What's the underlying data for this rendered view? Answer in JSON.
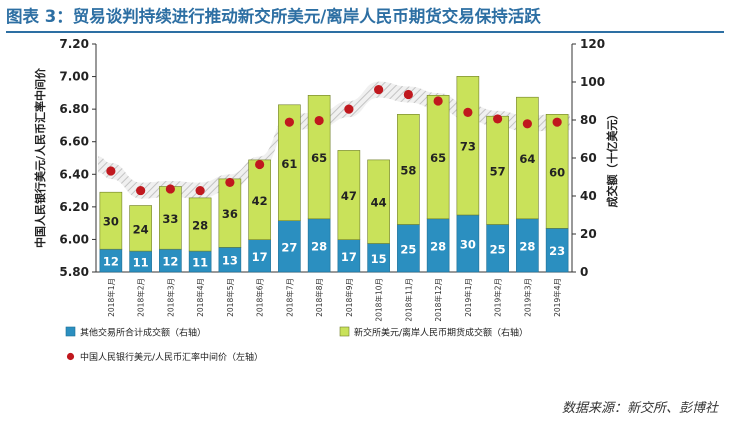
{
  "title": "图表 3：贸易谈判持续进行推动新交所美元/离岸人民币期货交易保持活跃",
  "source": "数据来源：新交所、彭博社",
  "colors": {
    "title": "#2d6fa3",
    "bar_other": "#2b8fc0",
    "bar_sgx": "#c9e25a",
    "dot": "#c0181e",
    "band": "#bdbdbd"
  },
  "chart_data": {
    "type": "bar",
    "categories": [
      "2018年1月",
      "2018年2月",
      "2018年3月",
      "2018年4月",
      "2018年5月",
      "2018年6月",
      "2018年7月",
      "2018年8月",
      "2018年9月",
      "2018年10月",
      "2018年11月",
      "2018年12月",
      "2019年1月",
      "2019年2月",
      "2019年3月",
      "2019年4月"
    ],
    "series": [
      {
        "name": "其他交易所合计成交额（右轴）",
        "type": "bar",
        "axis": "right",
        "values": [
          12,
          11,
          12,
          11,
          13,
          17,
          27,
          28,
          17,
          15,
          25,
          28,
          30,
          25,
          28,
          23
        ]
      },
      {
        "name": "新交所美元/离岸人民币期货成交额（右轴）",
        "type": "bar",
        "axis": "right",
        "values": [
          30,
          24,
          33,
          28,
          36,
          42,
          61,
          65,
          47,
          44,
          58,
          65,
          73,
          57,
          64,
          60
        ]
      },
      {
        "name": "中国人民银行美元/人民币汇率中间价（左轴）",
        "type": "scatter",
        "axis": "left",
        "values": [
          6.42,
          6.3,
          6.31,
          6.3,
          6.35,
          6.46,
          6.72,
          6.73,
          6.8,
          6.92,
          6.89,
          6.85,
          6.78,
          6.74,
          6.71,
          6.72
        ]
      }
    ],
    "ylabel_left": "中国人民银行美元/人民币汇率中间价",
    "ylabel_right": "成交额（十亿美元）",
    "yticks_left": [
      "5.80",
      "6.00",
      "6.20",
      "6.40",
      "6.60",
      "6.80",
      "7.00",
      "7.20"
    ],
    "yticks_right": [
      "0",
      "20",
      "40",
      "60",
      "80",
      "100",
      "120"
    ],
    "ylim_left": [
      5.8,
      7.2
    ],
    "ylim_right": [
      0,
      120
    ],
    "legend": {
      "other": "其他交易所合计成交额（右轴）",
      "sgx": "新交所美元/离岸人民币期货成交额（右轴）",
      "dot": "中国人民银行美元/人民币汇率中间价（左轴）"
    },
    "legend_position": "bottom",
    "grid": false,
    "stacked": true
  }
}
